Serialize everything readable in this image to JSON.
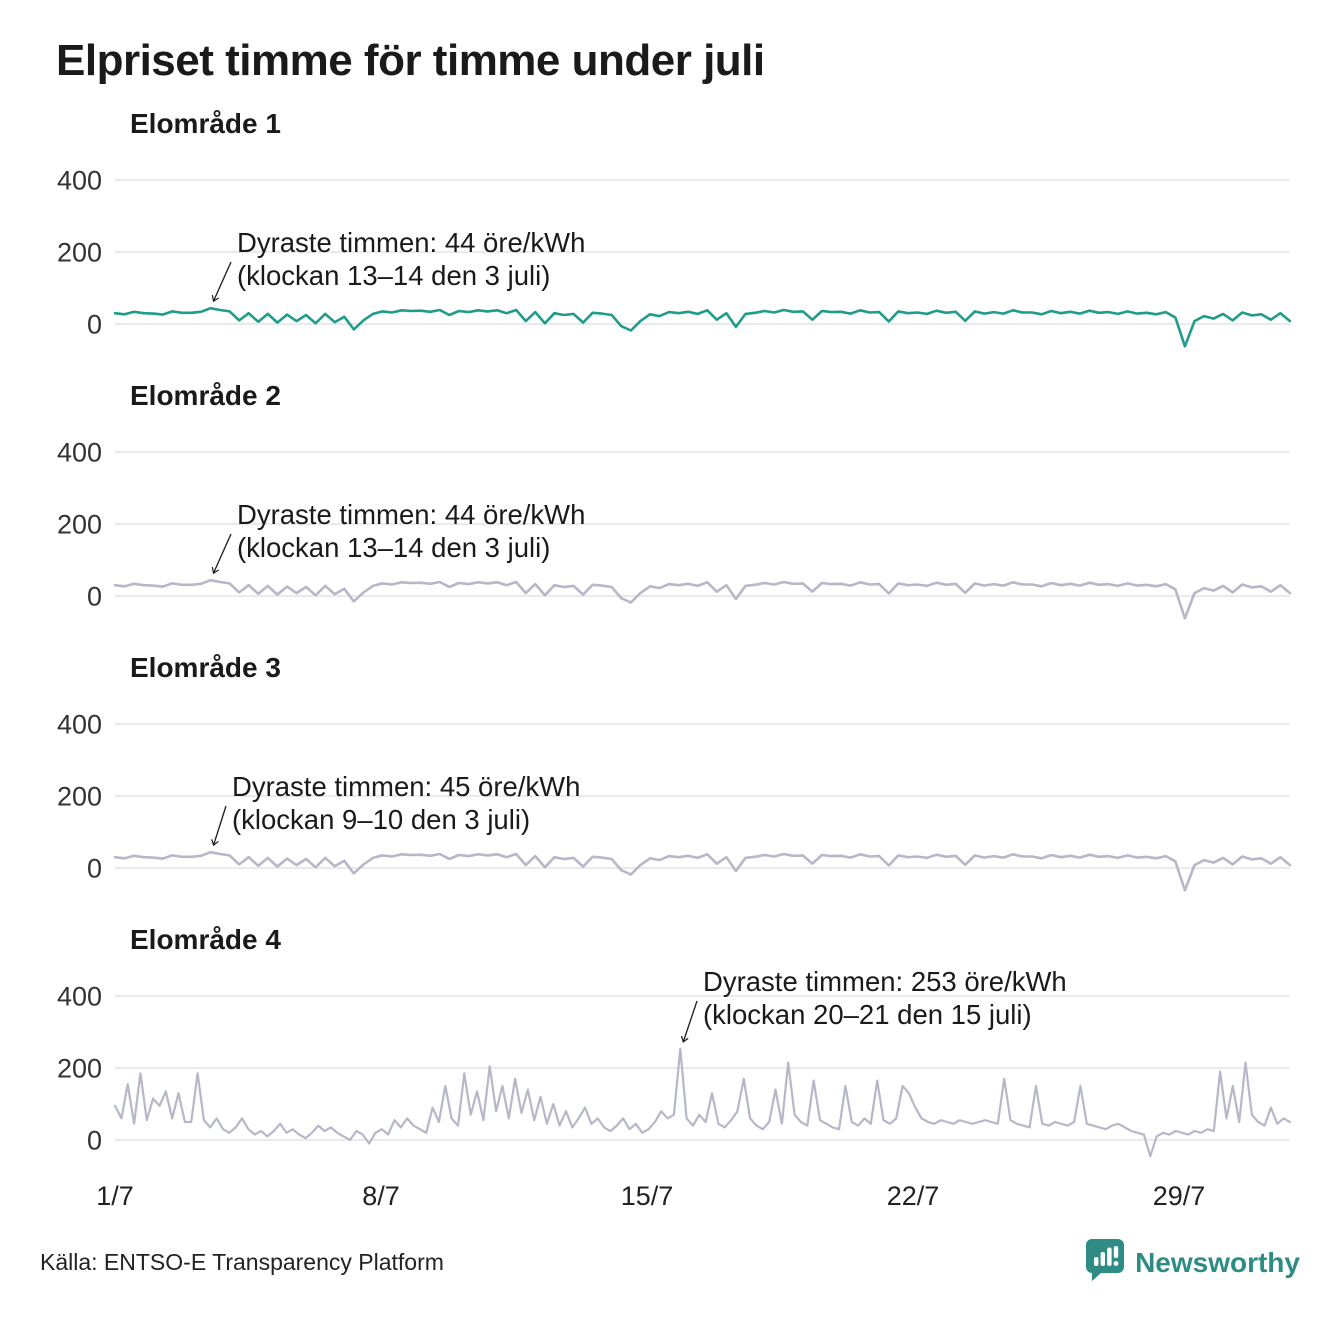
{
  "page": {
    "title": "Elpriset timme för timme under juli",
    "source": "Källa: ENTSO-E Transparency Platform",
    "brand": "Newsworthy"
  },
  "colors": {
    "teal_line": "#1f9c8a",
    "gray_line": "#b6b8c7",
    "grid": "#e3e4e6",
    "axis_text": "#333333",
    "annotation_text": "#1a1a1a",
    "brand_teal": "#2f8c85"
  },
  "chart_data": {
    "type": "line",
    "unit": "öre/kWh",
    "title": "Elpriset timme för timme under juli",
    "days_in_month": 31,
    "x_tick_labels": [
      "1/7",
      "8/7",
      "15/7",
      "22/7",
      "29/7"
    ],
    "x_tick_days": [
      0,
      7,
      14,
      21,
      28
    ],
    "y_ticks": [
      400,
      200,
      0
    ],
    "ylim": [
      -100,
      450
    ],
    "grid": true,
    "legend": "none",
    "charts": [
      {
        "title": "Elområde 1",
        "color": "#1f9c8a",
        "max_value": 44,
        "max_time": "klockan 13–14 den 3 juli",
        "annotation": {
          "line1": "Dyraste timmen: 44 öre/kWh",
          "line2": "(klockan 13–14 den 3 juli)",
          "x": 197,
          "y": 92
        },
        "points_per_day": 4,
        "values": [
          30,
          27,
          34,
          30,
          29,
          26,
          35,
          31,
          31,
          34,
          44,
          39,
          35,
          10,
          30,
          6,
          28,
          4,
          26,
          8,
          25,
          2,
          28,
          5,
          20,
          -15,
          10,
          28,
          35,
          32,
          38,
          36,
          37,
          34,
          39,
          25,
          36,
          33,
          38,
          35,
          38,
          30,
          39,
          8,
          33,
          2,
          30,
          25,
          28,
          4,
          31,
          29,
          25,
          -6,
          -18,
          8,
          27,
          22,
          33,
          30,
          34,
          28,
          38,
          12,
          30,
          -8,
          28,
          31,
          36,
          32,
          39,
          34,
          35,
          12,
          36,
          33,
          34,
          29,
          38,
          32,
          33,
          7,
          35,
          30,
          32,
          28,
          37,
          31,
          34,
          9,
          35,
          29,
          33,
          29,
          38,
          32,
          32,
          27,
          36,
          30,
          34,
          29,
          37,
          31,
          33,
          28,
          35,
          29,
          31,
          27,
          33,
          18,
          -62,
          8,
          22,
          15,
          28,
          10,
          32,
          24,
          27,
          12,
          30,
          8
        ]
      },
      {
        "title": "Elområde 2",
        "color": "#b6b8c7",
        "max_value": 44,
        "max_time": "klockan 13–14 den 3 juli",
        "annotation": {
          "line1": "Dyraste timmen: 44 öre/kWh",
          "line2": "(klockan 13–14 den 3 juli)",
          "x": 197,
          "y": 92
        },
        "points_per_day": 4,
        "values_same_as": 0
      },
      {
        "title": "Elområde 3",
        "color": "#b6b8c7",
        "max_value": 45,
        "max_time": "klockan 9–10 den 3 juli",
        "annotation": {
          "line1": "Dyraste timmen: 45 öre/kWh",
          "line2": "(klockan 9–10 den 3 juli)",
          "x": 192,
          "y": 92
        },
        "points_per_day": 4,
        "values_same_as": 0
      },
      {
        "title": "Elområde 4",
        "color": "#b6b8c7",
        "max_value": 253,
        "max_time": "klockan 20–21 den 15 juli",
        "annotation": {
          "line1": "Dyraste timmen: 253 öre/kWh",
          "line2": "(klockan 20–21 den 15 juli)",
          "x": 663,
          "y": 15
        },
        "points_per_day": 6,
        "values": [
          95,
          60,
          155,
          45,
          185,
          55,
          115,
          95,
          135,
          60,
          130,
          50,
          50,
          185,
          55,
          35,
          60,
          30,
          20,
          35,
          60,
          30,
          15,
          25,
          10,
          25,
          45,
          20,
          30,
          15,
          5,
          20,
          40,
          25,
          35,
          20,
          10,
          0,
          25,
          15,
          -10,
          20,
          30,
          15,
          55,
          35,
          60,
          40,
          30,
          20,
          90,
          50,
          150,
          60,
          40,
          185,
          70,
          135,
          55,
          205,
          80,
          150,
          60,
          170,
          75,
          140,
          55,
          120,
          45,
          100,
          40,
          80,
          35,
          60,
          90,
          45,
          60,
          35,
          25,
          40,
          60,
          30,
          45,
          20,
          30,
          50,
          80,
          60,
          70,
          253,
          60,
          40,
          70,
          50,
          130,
          45,
          35,
          55,
          80,
          170,
          60,
          40,
          30,
          50,
          140,
          45,
          215,
          70,
          50,
          40,
          165,
          55,
          45,
          35,
          30,
          150,
          50,
          40,
          60,
          45,
          165,
          55,
          45,
          60,
          150,
          130,
          90,
          60,
          50,
          45,
          55,
          50,
          45,
          55,
          50,
          45,
          50,
          55,
          50,
          45,
          170,
          55,
          45,
          40,
          35,
          150,
          45,
          40,
          50,
          45,
          40,
          50,
          150,
          45,
          40,
          35,
          30,
          40,
          45,
          35,
          25,
          20,
          15,
          -45,
          10,
          20,
          15,
          25,
          20,
          15,
          25,
          20,
          30,
          25,
          190,
          60,
          150,
          50,
          215,
          70,
          50,
          40,
          90,
          45,
          60,
          50
        ]
      }
    ]
  }
}
